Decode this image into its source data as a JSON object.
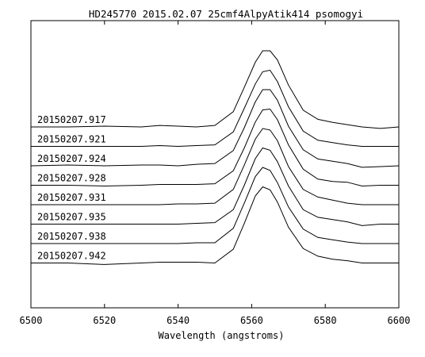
{
  "chart_data": {
    "type": "line",
    "title": "HD245770 2015.02.07 25cmf4AlpyAtik414 psomogyi",
    "xlabel": "Wavelength (angstroms)",
    "ylabel": "",
    "xlim": [
      6500,
      6600
    ],
    "x_ticks": [
      "6500",
      "6520",
      "6540",
      "6560",
      "6580",
      "6600"
    ],
    "grid": false,
    "legend": "none",
    "line_color": "#000000",
    "label_color": "#000000",
    "series": [
      {
        "name": "20150207.917",
        "x": [
          6500,
          6510,
          6520,
          6530,
          6535,
          6540,
          6545,
          6550,
          6555,
          6558,
          6561,
          6563,
          6565,
          6567,
          6570,
          6574,
          6578,
          6582,
          6586,
          6590,
          6595,
          6600
        ],
        "y": [
          0.0,
          0.0,
          0.01,
          0.0,
          0.02,
          0.01,
          0.0,
          0.02,
          0.2,
          0.52,
          0.85,
          1.0,
          1.0,
          0.88,
          0.55,
          0.22,
          0.1,
          0.06,
          0.03,
          0.0,
          -0.02,
          0.0
        ]
      },
      {
        "name": "20150207.921",
        "x": [
          6500,
          6510,
          6520,
          6530,
          6535,
          6540,
          6545,
          6550,
          6555,
          6558,
          6561,
          6563,
          6565,
          6567,
          6570,
          6574,
          6578,
          6582,
          6586,
          6590,
          6595,
          6600
        ],
        "y": [
          0.0,
          0.0,
          0.0,
          0.0,
          0.01,
          0.0,
          0.01,
          0.02,
          0.19,
          0.5,
          0.82,
          0.98,
          1.0,
          0.85,
          0.52,
          0.2,
          0.08,
          0.05,
          0.02,
          0.0,
          0.0,
          0.0
        ]
      },
      {
        "name": "20150207.924",
        "x": [
          6500,
          6510,
          6520,
          6530,
          6535,
          6540,
          6545,
          6550,
          6555,
          6558,
          6561,
          6563,
          6565,
          6567,
          6570,
          6574,
          6578,
          6582,
          6586,
          6590,
          6595,
          6600
        ],
        "y": [
          0.0,
          0.01,
          0.0,
          0.01,
          0.01,
          0.0,
          0.02,
          0.03,
          0.2,
          0.5,
          0.84,
          1.0,
          1.0,
          0.86,
          0.52,
          0.21,
          0.09,
          0.06,
          0.03,
          -0.02,
          -0.01,
          0.0
        ]
      },
      {
        "name": "20150207.928",
        "x": [
          6500,
          6510,
          6520,
          6530,
          6535,
          6540,
          6545,
          6550,
          6555,
          6558,
          6561,
          6563,
          6565,
          6567,
          6570,
          6574,
          6578,
          6582,
          6586,
          6590,
          6595,
          6600
        ],
        "y": [
          0.0,
          0.0,
          -0.01,
          0.0,
          0.01,
          0.01,
          0.01,
          0.02,
          0.19,
          0.49,
          0.83,
          0.99,
          1.0,
          0.86,
          0.53,
          0.21,
          0.08,
          0.05,
          0.04,
          -0.01,
          0.0,
          0.0
        ]
      },
      {
        "name": "20150207.931",
        "x": [
          6500,
          6510,
          6520,
          6530,
          6535,
          6540,
          6545,
          6550,
          6555,
          6558,
          6561,
          6563,
          6565,
          6567,
          6570,
          6574,
          6578,
          6582,
          6586,
          6590,
          6595,
          6600
        ],
        "y": [
          0.0,
          0.0,
          0.0,
          0.0,
          0.0,
          0.01,
          0.01,
          0.02,
          0.2,
          0.52,
          0.86,
          1.0,
          0.98,
          0.84,
          0.5,
          0.2,
          0.1,
          0.06,
          0.02,
          0.0,
          0.0,
          0.0
        ]
      },
      {
        "name": "20150207.935",
        "x": [
          6500,
          6510,
          6520,
          6530,
          6535,
          6540,
          6545,
          6550,
          6555,
          6558,
          6561,
          6563,
          6565,
          6567,
          6570,
          6574,
          6578,
          6582,
          6586,
          6590,
          6595,
          6600
        ],
        "y": [
          0.0,
          0.0,
          0.0,
          0.0,
          0.0,
          0.0,
          0.01,
          0.02,
          0.19,
          0.51,
          0.86,
          1.0,
          0.97,
          0.82,
          0.5,
          0.19,
          0.09,
          0.06,
          0.03,
          -0.02,
          0.0,
          0.0
        ]
      },
      {
        "name": "20150207.938",
        "x": [
          6500,
          6510,
          6520,
          6530,
          6535,
          6540,
          6545,
          6550,
          6555,
          6558,
          6561,
          6563,
          6565,
          6567,
          6570,
          6574,
          6578,
          6582,
          6586,
          6590,
          6595,
          6600
        ],
        "y": [
          0.0,
          0.0,
          0.0,
          0.0,
          0.0,
          0.0,
          0.01,
          0.01,
          0.2,
          0.53,
          0.88,
          1.0,
          0.96,
          0.8,
          0.48,
          0.19,
          0.08,
          0.05,
          0.02,
          0.0,
          0.0,
          0.0
        ]
      },
      {
        "name": "20150207.942",
        "x": [
          6500,
          6510,
          6520,
          6530,
          6535,
          6540,
          6545,
          6550,
          6555,
          6558,
          6561,
          6563,
          6565,
          6567,
          6570,
          6574,
          6578,
          6582,
          6586,
          6590,
          6595,
          6600
        ],
        "y": [
          0.0,
          0.0,
          -0.02,
          0.0,
          0.01,
          0.01,
          0.01,
          0.0,
          0.18,
          0.52,
          0.88,
          1.0,
          0.96,
          0.8,
          0.47,
          0.19,
          0.09,
          0.05,
          0.03,
          0.0,
          0.0,
          0.0
        ]
      }
    ]
  }
}
